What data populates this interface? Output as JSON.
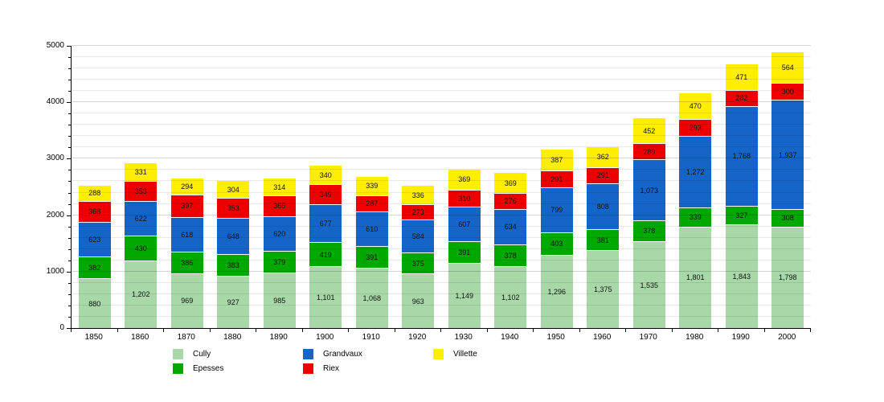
{
  "chart_data": {
    "type": "bar",
    "stacked": true,
    "title": "",
    "xlabel": "",
    "ylabel": "",
    "categories": [
      "1850",
      "1860",
      "1870",
      "1880",
      "1890",
      "1900",
      "1910",
      "1920",
      "1930",
      "1940",
      "1950",
      "1960",
      "1970",
      "1980",
      "1990",
      "2000"
    ],
    "series": [
      {
        "name": "Cully",
        "color": "#a8d8a8",
        "values": [
          880,
          1202,
          969,
          927,
          985,
          1101,
          1068,
          963,
          1149,
          1102,
          1296,
          1375,
          1535,
          1801,
          1843,
          1798
        ]
      },
      {
        "name": "Epesses",
        "color": "#00a800",
        "values": [
          382,
          430,
          386,
          383,
          379,
          419,
          391,
          375,
          391,
          378,
          403,
          381,
          378,
          339,
          327,
          308
        ]
      },
      {
        "name": "Grandvaux",
        "color": "#1565c8",
        "values": [
          623,
          622,
          618,
          648,
          620,
          677,
          610,
          584,
          607,
          634,
          799,
          808,
          1073,
          1272,
          1768,
          1937
        ]
      },
      {
        "name": "Riex",
        "color": "#ee0000",
        "values": [
          368,
          353,
          397,
          353,
          365,
          349,
          287,
          273,
          310,
          276,
          291,
          291,
          289,
          293,
          282,
          300
        ]
      },
      {
        "name": "Villette",
        "color": "#ffee00",
        "values": [
          288,
          331,
          294,
          304,
          314,
          340,
          339,
          336,
          369,
          369,
          387,
          362,
          452,
          470,
          471,
          564
        ]
      }
    ],
    "ylim": [
      0,
      5000
    ],
    "y_major_interval": 1000,
    "y_minor_interval": 200,
    "grid": true,
    "value_labels": "inside-center",
    "legend_position": "bottom"
  },
  "y_axis": {
    "tick_labels": [
      "0",
      "1000",
      "2000",
      "3000",
      "4000",
      "5000"
    ]
  },
  "legend": {
    "rows": [
      [
        "Cully",
        "Grandvaux",
        "Villette"
      ],
      [
        "Epesses",
        "Riex"
      ]
    ]
  }
}
